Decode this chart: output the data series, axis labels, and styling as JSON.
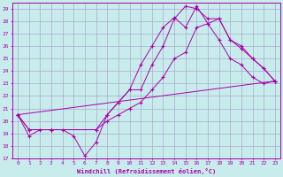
{
  "xlabel": "Windchill (Refroidissement éolien,°C)",
  "background_color": "#c8ecec",
  "line_color": "#aa00aa",
  "grid_color": "#aaaacc",
  "xlim": [
    -0.5,
    23.5
  ],
  "ylim": [
    17,
    29.5
  ],
  "yticks": [
    17,
    18,
    19,
    20,
    21,
    22,
    23,
    24,
    25,
    26,
    27,
    28,
    29
  ],
  "xticks": [
    0,
    1,
    2,
    3,
    4,
    5,
    6,
    7,
    8,
    9,
    10,
    11,
    12,
    13,
    14,
    15,
    16,
    17,
    18,
    19,
    20,
    21,
    22,
    23
  ],
  "lines": [
    {
      "x": [
        0,
        1,
        2,
        3,
        4,
        5,
        6,
        7,
        8,
        9,
        10,
        11,
        12,
        13,
        14,
        15,
        16,
        17,
        18,
        19,
        20,
        21,
        22,
        23
      ],
      "y": [
        20.5,
        18.8,
        19.3,
        19.3,
        19.3,
        18.8,
        17.2,
        18.3,
        20.5,
        21.5,
        22.5,
        24.5,
        26.0,
        27.5,
        28.3,
        27.5,
        29.2,
        27.8,
        26.5,
        25.0,
        24.5,
        23.5,
        23.0,
        23.2
      ]
    },
    {
      "x": [
        0,
        1,
        3,
        7,
        8,
        9,
        10,
        11,
        12,
        13,
        14,
        15,
        16,
        17,
        18,
        19,
        20,
        21,
        22,
        23
      ],
      "y": [
        20.5,
        19.3,
        19.3,
        19.3,
        20.5,
        21.5,
        22.5,
        22.5,
        24.5,
        26.0,
        28.2,
        29.2,
        29.0,
        28.2,
        28.2,
        26.5,
        26.0,
        25.0,
        24.2,
        23.2
      ]
    },
    {
      "x": [
        0,
        1,
        3,
        7,
        8,
        9,
        10,
        11,
        12,
        13,
        14,
        15,
        16,
        17,
        18,
        19,
        20,
        21,
        22,
        23
      ],
      "y": [
        20.5,
        19.3,
        19.3,
        19.3,
        20.0,
        20.5,
        21.0,
        21.5,
        22.5,
        23.5,
        25.0,
        25.5,
        27.5,
        27.8,
        28.2,
        26.5,
        25.8,
        25.0,
        24.2,
        23.2
      ]
    },
    {
      "x": [
        0,
        23
      ],
      "y": [
        20.5,
        23.2
      ]
    }
  ]
}
